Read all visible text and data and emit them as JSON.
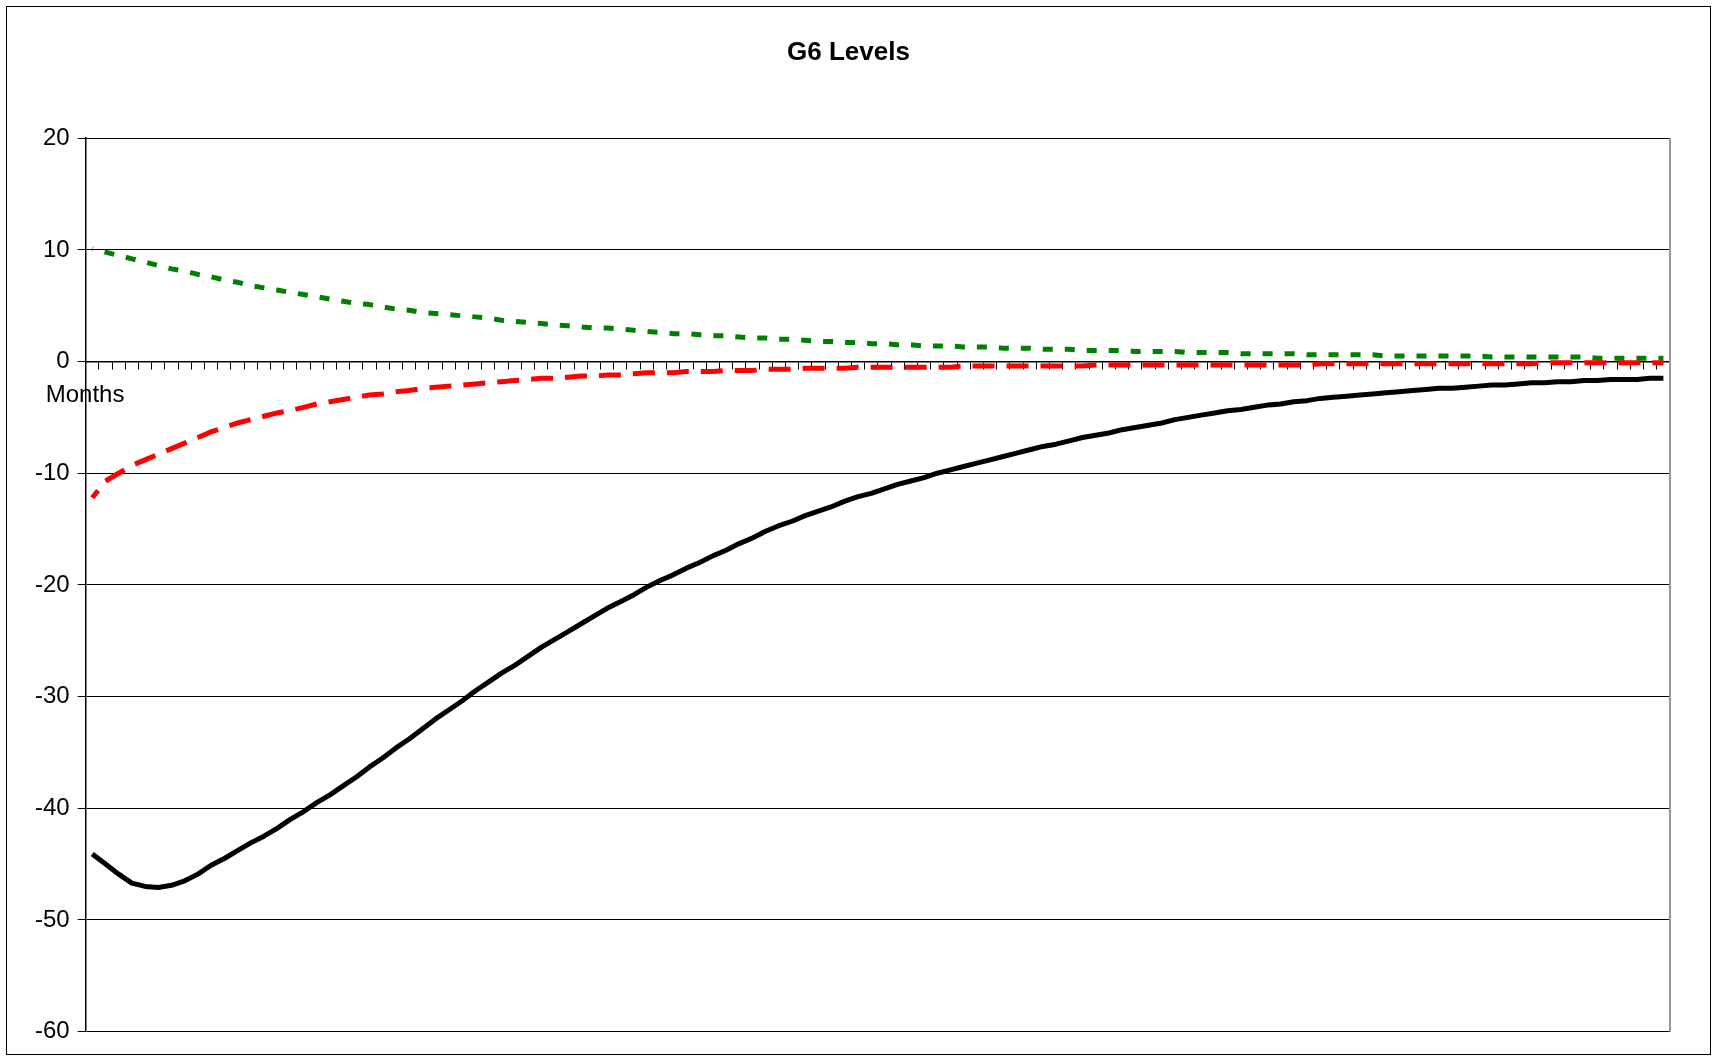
{
  "chart_data": {
    "type": "line",
    "title": "G6 Levels",
    "xlabel": "Months",
    "categories": [
      null,
      null,
      null,
      null,
      null,
      null,
      null,
      null,
      null,
      null,
      null,
      null,
      null,
      null,
      null,
      null,
      null,
      null,
      null,
      null,
      null,
      null,
      null,
      null,
      null,
      null,
      null,
      null,
      null,
      null,
      null,
      null,
      null,
      null,
      null,
      null,
      null,
      null,
      null,
      null,
      null,
      null,
      null,
      null,
      null,
      null,
      null,
      null,
      null,
      null,
      null,
      null,
      null,
      null,
      null,
      null,
      null,
      null,
      null,
      null,
      null,
      null,
      null,
      null,
      null,
      null,
      null,
      null,
      null,
      null,
      null,
      null,
      null,
      null,
      null,
      null,
      null,
      null,
      null,
      null,
      null,
      null,
      null,
      null,
      null,
      null,
      null,
      null,
      null,
      null,
      null,
      null,
      null,
      null,
      null,
      null,
      null,
      null,
      null,
      null,
      null,
      null,
      null,
      null,
      null,
      null,
      null,
      null,
      null,
      null,
      null,
      null,
      null,
      null,
      null,
      null,
      null,
      null,
      null,
      null
    ],
    "ylim": [
      -60,
      20
    ],
    "yticks": [
      -60,
      -50,
      -40,
      -30,
      -20,
      -10,
      0,
      10,
      20
    ],
    "grid": "y",
    "legend": false,
    "tick_labels": "y",
    "marker": "none",
    "series": [
      {
        "color": "#000000",
        "line_style": "solid",
        "values": [
          -44.1,
          -45.0,
          -45.9,
          -46.7,
          -47.0,
          -47.1,
          -46.9,
          -46.5,
          -45.9,
          -45.1,
          -44.5,
          -43.8,
          -43.1,
          -42.5,
          -41.8,
          -41.0,
          -40.3,
          -39.5,
          -38.8,
          -38.0,
          -37.2,
          -36.3,
          -35.5,
          -34.6,
          -33.8,
          -32.9,
          -32.0,
          -31.2,
          -30.4,
          -29.5,
          -28.7,
          -27.9,
          -27.2,
          -26.4,
          -25.6,
          -24.9,
          -24.2,
          -23.5,
          -22.8,
          -22.1,
          -21.5,
          -20.9,
          -20.2,
          -19.6,
          -19.1,
          -18.5,
          -18.0,
          -17.4,
          -16.9,
          -16.3,
          -15.8,
          -15.2,
          -14.7,
          -14.3,
          -13.8,
          -13.4,
          -13.0,
          -12.5,
          -12.1,
          -11.8,
          -11.4,
          -11.0,
          -10.7,
          -10.4,
          -10.0,
          -9.7,
          -9.4,
          -9.1,
          -8.8,
          -8.5,
          -8.2,
          -7.9,
          -7.6,
          -7.4,
          -7.1,
          -6.8,
          -6.6,
          -6.4,
          -6.1,
          -5.9,
          -5.7,
          -5.5,
          -5.2,
          -5.0,
          -4.8,
          -4.6,
          -4.4,
          -4.3,
          -4.1,
          -3.9,
          -3.8,
          -3.6,
          -3.5,
          -3.3,
          -3.2,
          -3.1,
          -3.0,
          -2.9,
          -2.8,
          -2.7,
          -2.6,
          -2.5,
          -2.4,
          -2.4,
          -2.3,
          -2.2,
          -2.1,
          -2.1,
          -2.0,
          -1.9,
          -1.9,
          -1.8,
          -1.8,
          -1.7,
          -1.7,
          -1.6,
          -1.6,
          -1.6,
          -1.5,
          -1.5
        ]
      },
      {
        "color": "#ff0000",
        "line_style": "dashed",
        "values": [
          -12.2,
          -10.7,
          -10.0,
          -9.3,
          -8.8,
          -8.3,
          -7.8,
          -7.3,
          -6.8,
          -6.3,
          -5.9,
          -5.5,
          -5.2,
          -4.9,
          -4.6,
          -4.4,
          -4.1,
          -3.8,
          -3.6,
          -3.4,
          -3.2,
          -3.0,
          -2.9,
          -2.7,
          -2.6,
          -2.4,
          -2.3,
          -2.2,
          -2.1,
          -2.0,
          -1.9,
          -1.8,
          -1.7,
          -1.6,
          -1.5,
          -1.5,
          -1.4,
          -1.3,
          -1.3,
          -1.2,
          -1.2,
          -1.1,
          -1.0,
          -1.0,
          -1.0,
          -0.9,
          -0.9,
          -0.9,
          -0.8,
          -0.8,
          -0.8,
          -0.7,
          -0.7,
          -0.7,
          -0.6,
          -0.6,
          -0.6,
          -0.6,
          -0.5,
          -0.5,
          -0.5,
          -0.5,
          -0.5,
          -0.5,
          -0.5,
          -0.5,
          -0.4,
          -0.4,
          -0.4,
          -0.4,
          -0.4,
          -0.4,
          -0.4,
          -0.4,
          -0.4,
          -0.4,
          -0.3,
          -0.3,
          -0.3,
          -0.3,
          -0.3,
          -0.3,
          -0.3,
          -0.3,
          -0.3,
          -0.3,
          -0.3,
          -0.3,
          -0.3,
          -0.3,
          -0.3,
          -0.3,
          -0.3,
          -0.2,
          -0.2,
          -0.2,
          -0.2,
          -0.2,
          -0.2,
          -0.2,
          -0.2,
          -0.2,
          -0.2,
          -0.2,
          -0.2,
          -0.2,
          -0.2,
          -0.2,
          -0.2,
          -0.2,
          -0.1,
          -0.1,
          -0.1,
          -0.1,
          -0.1,
          -0.1,
          -0.1,
          -0.1,
          -0.1,
          -0.1
        ]
      },
      {
        "color": "#008000",
        "line_style": "dotted",
        "values": [
          10.1,
          9.8,
          9.5,
          9.2,
          8.9,
          8.6,
          8.3,
          8.1,
          7.8,
          7.6,
          7.3,
          7.1,
          6.8,
          6.6,
          6.4,
          6.2,
          6.0,
          5.8,
          5.6,
          5.4,
          5.2,
          5.1,
          4.9,
          4.7,
          4.6,
          4.4,
          4.3,
          4.2,
          4.1,
          4.0,
          3.9,
          3.7,
          3.6,
          3.5,
          3.4,
          3.3,
          3.2,
          3.1,
          3.0,
          3.0,
          2.9,
          2.8,
          2.7,
          2.6,
          2.5,
          2.5,
          2.4,
          2.3,
          2.3,
          2.2,
          2.1,
          2.1,
          2.0,
          2.0,
          1.9,
          1.8,
          1.8,
          1.7,
          1.7,
          1.6,
          1.6,
          1.5,
          1.5,
          1.4,
          1.4,
          1.4,
          1.3,
          1.3,
          1.3,
          1.2,
          1.2,
          1.2,
          1.1,
          1.1,
          1.1,
          1.0,
          1.0,
          1.0,
          1.0,
          0.9,
          0.9,
          0.9,
          0.9,
          0.8,
          0.8,
          0.8,
          0.8,
          0.7,
          0.7,
          0.7,
          0.7,
          0.7,
          0.6,
          0.6,
          0.6,
          0.6,
          0.6,
          0.6,
          0.5,
          0.5,
          0.5,
          0.5,
          0.5,
          0.5,
          0.5,
          0.5,
          0.4,
          0.4,
          0.4,
          0.4,
          0.4,
          0.4,
          0.4,
          0.4,
          0.3,
          0.3,
          0.3,
          0.3,
          0.3,
          0.3
        ]
      }
    ]
  }
}
